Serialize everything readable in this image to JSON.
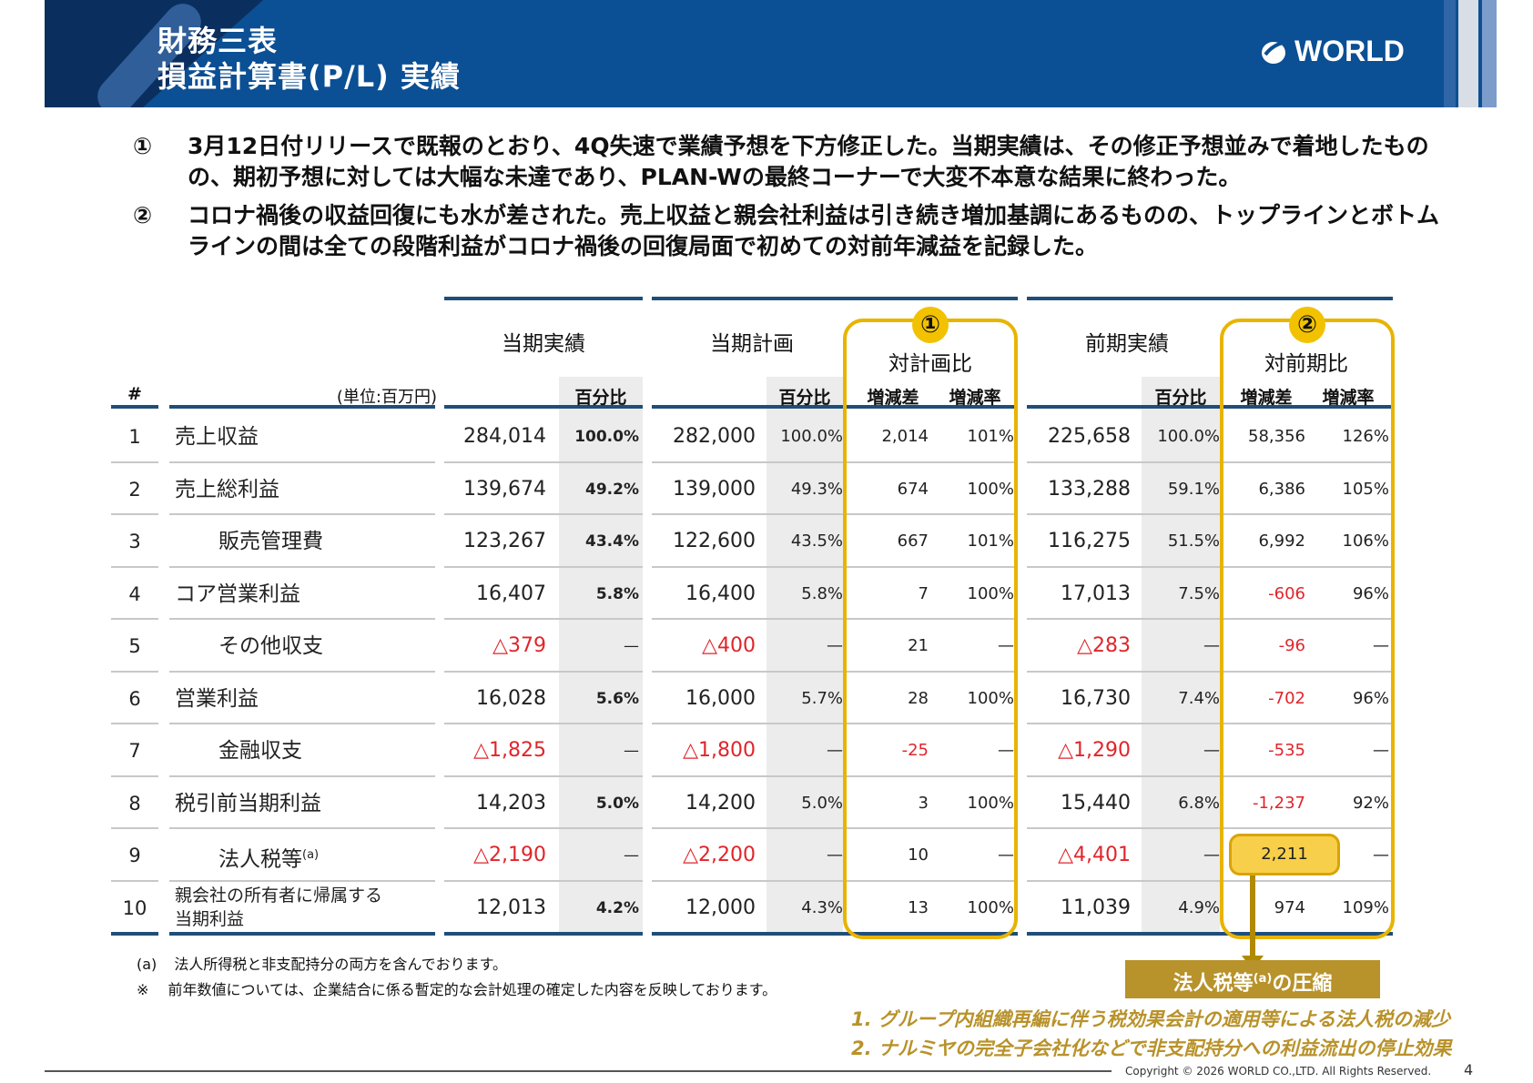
{
  "header": {
    "title_line1": "財務三表",
    "title_line2": "損益計算書(P/L) 実績",
    "logo_text": "WORLD"
  },
  "summary": [
    {
      "num": "①",
      "text": "3月12日付リリースで既報のとおり、4Q失速で業績予想を下方修正した。当期実績は、その修正予想並みで着地したものの、期初予想に対しては大幅な未達であり、PLAN-Wの最終コーナーで大変不本意な結果に終わった。"
    },
    {
      "num": "②",
      "text": "コロナ禍後の収益回復にも水が差された。売上収益と親会社利益は引き続き増加基調にあるものの、トップラインとボトムラインの間は全ての段階利益がコロナ禍後の回復局面で初めての対前年減益を記録した。"
    }
  ],
  "table": {
    "hash_label": "#",
    "unit_label": "(単位:百万円)",
    "groups": {
      "actual": "当期実績",
      "plan": "当期計画",
      "vs_plan": "対計画比",
      "prior": "前期実績",
      "vs_prior": "対前期比"
    },
    "sub": {
      "pct": "百分比",
      "diff": "増減差",
      "rate": "増減率"
    },
    "circle1": "①",
    "circle2": "②",
    "rows": [
      {
        "no": "1",
        "name": "売上収益",
        "indent": false,
        "act": "284,014",
        "act_pct": "100.0%",
        "plan": "282,000",
        "plan_pct": "100.0%",
        "vp_diff": "2,014",
        "vp_rate": "101%",
        "prior": "225,658",
        "prior_pct": "100.0%",
        "vpr_diff": "58,356",
        "vpr_rate": "126%"
      },
      {
        "no": "2",
        "name": "売上総利益",
        "indent": false,
        "act": "139,674",
        "act_pct": "49.2%",
        "plan": "139,000",
        "plan_pct": "49.3%",
        "vp_diff": "674",
        "vp_rate": "100%",
        "prior": "133,288",
        "prior_pct": "59.1%",
        "vpr_diff": "6,386",
        "vpr_rate": "105%"
      },
      {
        "no": "3",
        "name": "販売管理費",
        "indent": true,
        "act": "123,267",
        "act_pct": "43.4%",
        "plan": "122,600",
        "plan_pct": "43.5%",
        "vp_diff": "667",
        "vp_rate": "101%",
        "prior": "116,275",
        "prior_pct": "51.5%",
        "vpr_diff": "6,992",
        "vpr_rate": "106%"
      },
      {
        "no": "4",
        "name": "コア営業利益",
        "indent": false,
        "act": "16,407",
        "act_pct": "5.8%",
        "plan": "16,400",
        "plan_pct": "5.8%",
        "vp_diff": "7",
        "vp_rate": "100%",
        "prior": "17,013",
        "prior_pct": "7.5%",
        "vpr_diff": "-606",
        "vpr_rate": "96%"
      },
      {
        "no": "5",
        "name": "その他収支",
        "indent": true,
        "act": "△379",
        "act_pct": "—",
        "plan": "△400",
        "plan_pct": "—",
        "vp_diff": "21",
        "vp_rate": "—",
        "prior": "△283",
        "prior_pct": "—",
        "vpr_diff": "-96",
        "vpr_rate": "—"
      },
      {
        "no": "6",
        "name": "営業利益",
        "indent": false,
        "act": "16,028",
        "act_pct": "5.6%",
        "plan": "16,000",
        "plan_pct": "5.7%",
        "vp_diff": "28",
        "vp_rate": "100%",
        "prior": "16,730",
        "prior_pct": "7.4%",
        "vpr_diff": "-702",
        "vpr_rate": "96%"
      },
      {
        "no": "7",
        "name": "金融収支",
        "indent": true,
        "act": "△1,825",
        "act_pct": "—",
        "plan": "△1,800",
        "plan_pct": "—",
        "vp_diff": "-25",
        "vp_rate": "—",
        "prior": "△1,290",
        "prior_pct": "—",
        "vpr_diff": "-535",
        "vpr_rate": "—"
      },
      {
        "no": "8",
        "name": "税引前当期利益",
        "indent": false,
        "act": "14,203",
        "act_pct": "5.0%",
        "plan": "14,200",
        "plan_pct": "5.0%",
        "vp_diff": "3",
        "vp_rate": "100%",
        "prior": "15,440",
        "prior_pct": "6.8%",
        "vpr_diff": "-1,237",
        "vpr_rate": "92%"
      },
      {
        "no": "9",
        "name": "法人税等",
        "name_sup": "(a)",
        "indent": true,
        "act": "△2,190",
        "act_pct": "—",
        "plan": "△2,200",
        "plan_pct": "—",
        "vp_diff": "10",
        "vp_rate": "—",
        "prior": "△4,401",
        "prior_pct": "—",
        "vpr_diff": "2,211",
        "vpr_rate": "—"
      },
      {
        "no": "10",
        "name_l1": "親会社の所有者に帰属する",
        "name_l2": "当期利益",
        "indent": false,
        "act": "12,013",
        "act_pct": "4.2%",
        "plan": "12,000",
        "plan_pct": "4.3%",
        "vp_diff": "13",
        "vp_rate": "100%",
        "prior": "11,039",
        "prior_pct": "4.9%",
        "vpr_diff": "974",
        "vpr_rate": "109%"
      }
    ]
  },
  "footnotes": {
    "a_mark": "(a)",
    "a_text": "法人所得税と非支配持分の両方を含んでおります。",
    "note_mark": "※",
    "note_text": "前年数値については、企業結合に係る暫定的な会計処理の確定した内容を反映しております。"
  },
  "callout": {
    "title_pre": "法人税等",
    "title_sup": "(a)",
    "title_post": "の圧縮",
    "item1": "1.  グループ内組織再編に伴う税効果会計の適用等による法人税の減少",
    "item2": "2.  ナルミヤの完全子会社化などで非支配持分への利益流出の停止効果"
  },
  "footer": {
    "copyright": "Copyright © 2026 WORLD CO.,LTD. All Rights Reserved.",
    "page": "4"
  },
  "colors": {
    "header_blue": "#0b4f94",
    "negative_red": "#e0252b",
    "highlight_yellow": "#e8b400",
    "gold_box": "#b8922a"
  }
}
